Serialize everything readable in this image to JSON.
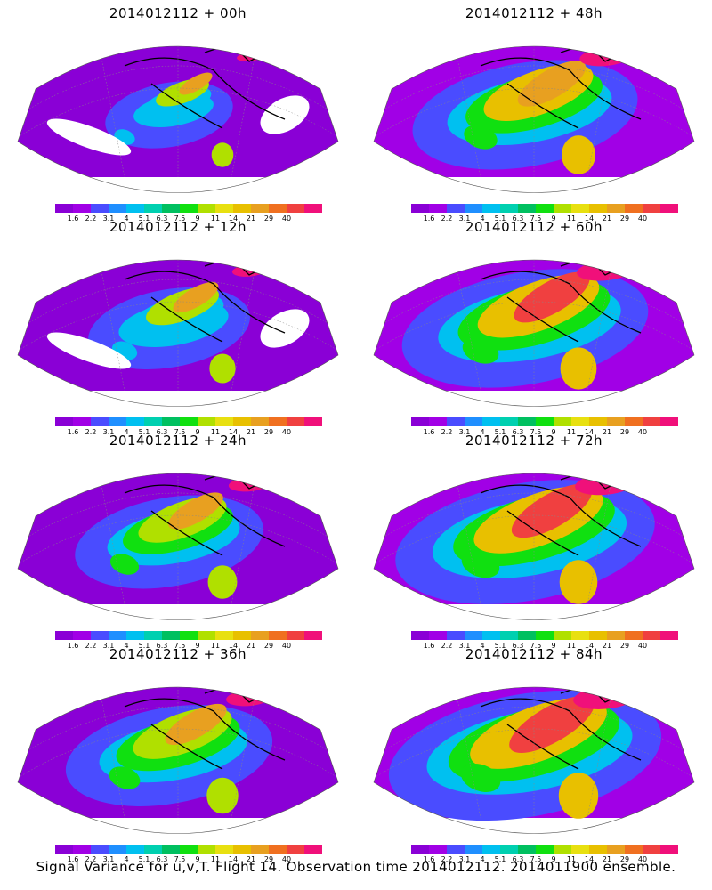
{
  "panels": [
    {
      "title": "2014012112 + 00h",
      "intensity": 0.35
    },
    {
      "title": "2014012112 + 48h",
      "intensity": 0.72
    },
    {
      "title": "2014012112 + 12h",
      "intensity": 0.48
    },
    {
      "title": "2014012112 + 60h",
      "intensity": 0.8
    },
    {
      "title": "2014012112 + 24h",
      "intensity": 0.58
    },
    {
      "title": "2014012112 + 72h",
      "intensity": 0.85
    },
    {
      "title": "2014012112 + 36h",
      "intensity": 0.65
    },
    {
      "title": "2014012112 + 84h",
      "intensity": 0.9
    }
  ],
  "colorbar": {
    "labels": [
      "1.6",
      "2.2",
      "3.1",
      "4",
      "5.1",
      "6.3",
      "7.5",
      "9",
      "11",
      "14",
      "21",
      "29",
      "40"
    ],
    "colors": [
      "#8a00d6",
      "#a100e6",
      "#4a4cff",
      "#1f8fff",
      "#00c0f0",
      "#00d0b0",
      "#00c060",
      "#10e010",
      "#b0e000",
      "#e8e010",
      "#e8c000",
      "#e8a020",
      "#f07020",
      "#f04040",
      "#f0107a"
    ]
  },
  "caption": "Signal Variance for u,v,T. Flight 14. Observation time 2014012112. 2014011900 ensemble."
}
